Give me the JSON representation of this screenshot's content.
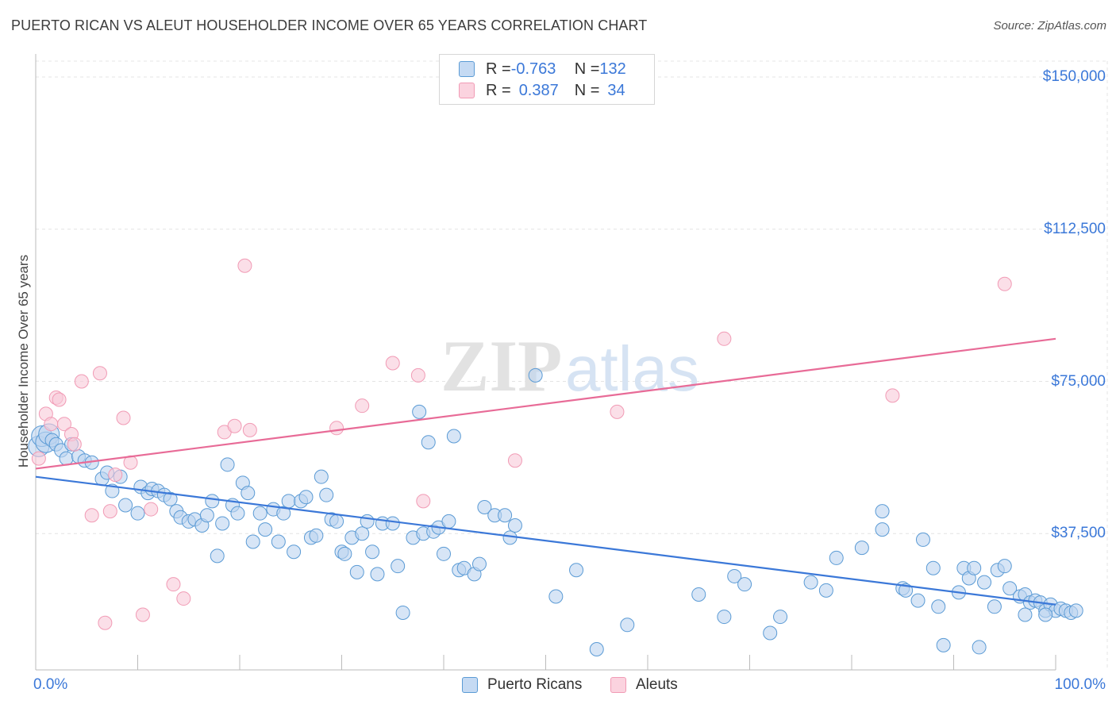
{
  "title": "PUERTO RICAN VS ALEUT HOUSEHOLDER INCOME OVER 65 YEARS CORRELATION CHART",
  "source": "Source: ZipAtlas.com",
  "watermark": {
    "zip": "ZIP",
    "atlas": "atlas"
  },
  "legend": {
    "rows": [
      {
        "r_label": "R = ",
        "r_value": "-0.763",
        "n_label": "N = ",
        "n_value": "132",
        "color": "#5b9bd5"
      },
      {
        "r_label": "R = ",
        "r_value": "0.387",
        "n_label": "N = ",
        "n_value": "34",
        "color": "#f19bb5"
      }
    ]
  },
  "bottom_legend": [
    "Puerto Ricans",
    "Aleuts"
  ],
  "chart_data": {
    "type": "scatter",
    "ylabel": "Householder Income Over 65 years",
    "xlabel": "",
    "xlim": [
      0,
      100
    ],
    "ylim": [
      0,
      155000
    ],
    "x_tick_labels": [
      "0.0%",
      "100.0%"
    ],
    "y_ticks": [
      37500,
      75000,
      112500,
      150000
    ],
    "y_tick_labels": [
      "$37,500",
      "$75,000",
      "$112,500",
      "$150,000"
    ],
    "grid": true,
    "series": [
      {
        "name": "Puerto Ricans",
        "color": "#5b9bd5",
        "trend": {
          "x": [
            0,
            100
          ],
          "y": [
            51500,
            20000
          ]
        },
        "points": [
          [
            0.3,
            59000
          ],
          [
            0.6,
            61500
          ],
          [
            1.0,
            60000
          ],
          [
            1.3,
            62000
          ],
          [
            1.6,
            60500
          ],
          [
            2.0,
            59500
          ],
          [
            2.5,
            58000
          ],
          [
            3.0,
            56000
          ],
          [
            3.5,
            59500
          ],
          [
            4.2,
            56500
          ],
          [
            4.8,
            55500
          ],
          [
            5.5,
            55000
          ],
          [
            6.5,
            51000
          ],
          [
            7.0,
            52500
          ],
          [
            7.5,
            48000
          ],
          [
            8.3,
            51500
          ],
          [
            8.8,
            44500
          ],
          [
            10.0,
            42500
          ],
          [
            10.3,
            49000
          ],
          [
            11.0,
            47500
          ],
          [
            11.4,
            48500
          ],
          [
            12.0,
            48000
          ],
          [
            12.6,
            47000
          ],
          [
            13.2,
            46000
          ],
          [
            13.8,
            43000
          ],
          [
            14.2,
            41500
          ],
          [
            15.0,
            40500
          ],
          [
            15.6,
            41000
          ],
          [
            16.3,
            39500
          ],
          [
            16.8,
            42000
          ],
          [
            17.3,
            45500
          ],
          [
            17.8,
            32000
          ],
          [
            18.3,
            40000
          ],
          [
            18.8,
            54500
          ],
          [
            19.3,
            44500
          ],
          [
            19.8,
            42500
          ],
          [
            20.3,
            50000
          ],
          [
            20.8,
            47500
          ],
          [
            21.3,
            35500
          ],
          [
            22.0,
            42500
          ],
          [
            22.5,
            38500
          ],
          [
            23.3,
            43500
          ],
          [
            23.8,
            35500
          ],
          [
            24.3,
            42500
          ],
          [
            24.8,
            45500
          ],
          [
            25.3,
            33000
          ],
          [
            26.0,
            45500
          ],
          [
            26.5,
            46500
          ],
          [
            27.0,
            36500
          ],
          [
            27.5,
            37000
          ],
          [
            28.0,
            51500
          ],
          [
            28.5,
            47000
          ],
          [
            29.0,
            41000
          ],
          [
            29.5,
            40500
          ],
          [
            30.0,
            33000
          ],
          [
            30.3,
            32500
          ],
          [
            31.0,
            36500
          ],
          [
            31.5,
            28000
          ],
          [
            32.0,
            37500
          ],
          [
            32.5,
            40500
          ],
          [
            33.0,
            33000
          ],
          [
            33.5,
            27500
          ],
          [
            34.0,
            40000
          ],
          [
            35.0,
            40000
          ],
          [
            35.5,
            29500
          ],
          [
            36.0,
            18000
          ],
          [
            37.0,
            36500
          ],
          [
            37.6,
            67500
          ],
          [
            38.0,
            37500
          ],
          [
            38.5,
            60000
          ],
          [
            39.0,
            38000
          ],
          [
            39.5,
            39000
          ],
          [
            40.0,
            32500
          ],
          [
            40.5,
            40500
          ],
          [
            41.0,
            61500
          ],
          [
            41.5,
            28500
          ],
          [
            42.0,
            29000
          ],
          [
            43.0,
            27500
          ],
          [
            43.5,
            30000
          ],
          [
            44.0,
            44000
          ],
          [
            45.0,
            42000
          ],
          [
            46.0,
            42000
          ],
          [
            46.5,
            36500
          ],
          [
            47.0,
            39500
          ],
          [
            49.0,
            76500
          ],
          [
            51.0,
            22000
          ],
          [
            53.0,
            28500
          ],
          [
            55.0,
            9000
          ],
          [
            58.0,
            15000
          ],
          [
            65.0,
            22500
          ],
          [
            67.5,
            17000
          ],
          [
            68.5,
            27000
          ],
          [
            69.5,
            25000
          ],
          [
            72.0,
            13000
          ],
          [
            73.0,
            17000
          ],
          [
            76.0,
            25500
          ],
          [
            77.5,
            23500
          ],
          [
            78.5,
            31500
          ],
          [
            81.0,
            34000
          ],
          [
            83.0,
            43000
          ],
          [
            83.0,
            38500
          ],
          [
            85.0,
            24000
          ],
          [
            85.3,
            23500
          ],
          [
            86.5,
            21000
          ],
          [
            87.0,
            36000
          ],
          [
            88.0,
            29000
          ],
          [
            88.5,
            19500
          ],
          [
            89.0,
            10000
          ],
          [
            90.5,
            23000
          ],
          [
            91.0,
            29000
          ],
          [
            91.5,
            26500
          ],
          [
            92.0,
            29000
          ],
          [
            92.5,
            9500
          ],
          [
            93.0,
            25500
          ],
          [
            94.0,
            19500
          ],
          [
            94.3,
            28500
          ],
          [
            95.0,
            29500
          ],
          [
            95.5,
            24000
          ],
          [
            96.5,
            22000
          ],
          [
            97.0,
            22500
          ],
          [
            97.5,
            20500
          ],
          [
            98.0,
            21000
          ],
          [
            98.5,
            20500
          ],
          [
            99.0,
            18500
          ],
          [
            99.5,
            20000
          ],
          [
            100.0,
            18500
          ],
          [
            100.5,
            19000
          ],
          [
            101.0,
            18500
          ],
          [
            101.5,
            18000
          ],
          [
            102.0,
            18500
          ],
          [
            97.0,
            17500
          ],
          [
            99.0,
            17500
          ]
        ]
      },
      {
        "name": "Aleuts",
        "color": "#f19bb5",
        "trend": {
          "x": [
            0,
            100
          ],
          "y": [
            53500,
            85500
          ]
        },
        "points": [
          [
            0.3,
            56000
          ],
          [
            1.0,
            67000
          ],
          [
            1.5,
            64500
          ],
          [
            2.0,
            71000
          ],
          [
            2.3,
            70500
          ],
          [
            2.8,
            64500
          ],
          [
            3.5,
            62000
          ],
          [
            3.8,
            59500
          ],
          [
            4.5,
            75000
          ],
          [
            5.5,
            42000
          ],
          [
            6.3,
            77000
          ],
          [
            6.8,
            15500
          ],
          [
            7.3,
            43000
          ],
          [
            7.8,
            52000
          ],
          [
            8.6,
            66000
          ],
          [
            9.3,
            55000
          ],
          [
            10.5,
            17500
          ],
          [
            11.3,
            43500
          ],
          [
            13.5,
            25000
          ],
          [
            14.5,
            21500
          ],
          [
            18.5,
            62500
          ],
          [
            19.5,
            64000
          ],
          [
            20.5,
            103500
          ],
          [
            21.0,
            63000
          ],
          [
            29.5,
            63500
          ],
          [
            32.0,
            69000
          ],
          [
            35.0,
            79500
          ],
          [
            37.5,
            76500
          ],
          [
            38.0,
            45500
          ],
          [
            47.0,
            55500
          ],
          [
            57.0,
            67500
          ],
          [
            67.5,
            85500
          ],
          [
            84.0,
            71500
          ],
          [
            95.0,
            99000
          ]
        ]
      }
    ]
  }
}
